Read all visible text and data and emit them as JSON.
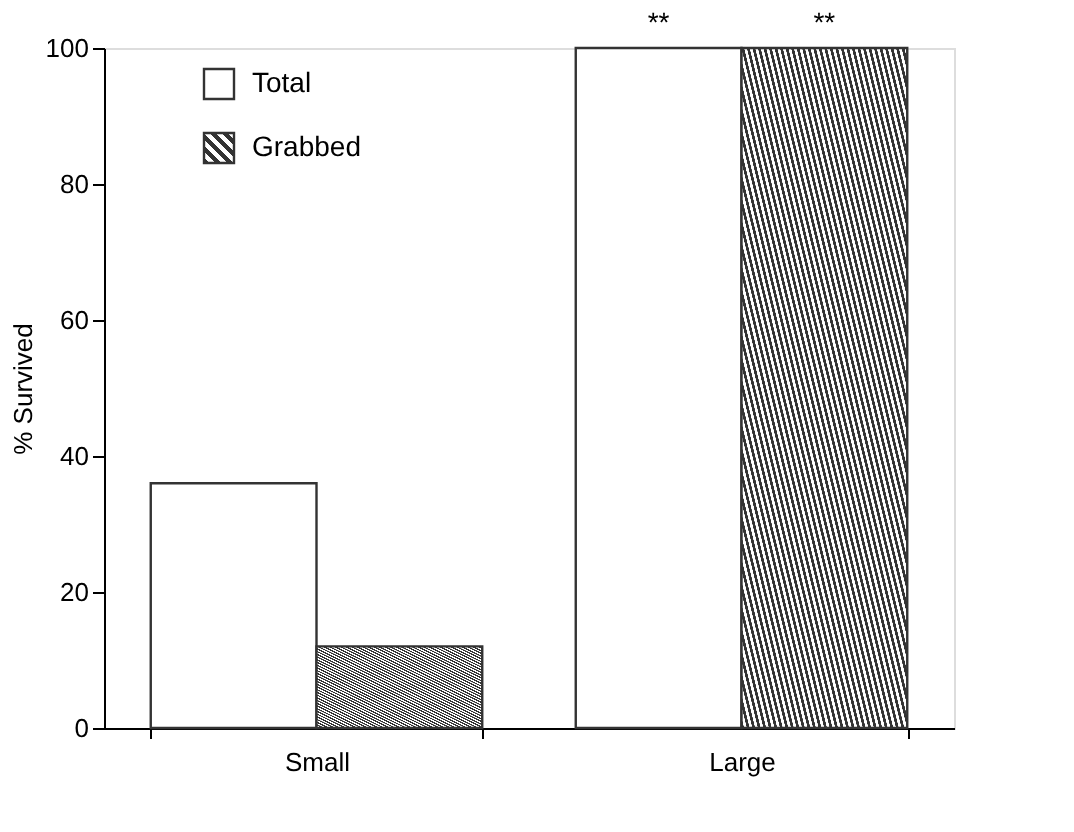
{
  "chart_data": {
    "type": "bar",
    "ylabel": "% Survived",
    "categories": [
      "Small",
      "Large"
    ],
    "series": [
      {
        "name": "Total",
        "color": "#ffffff",
        "values": [
          36,
          100
        ]
      },
      {
        "name": "Grabbed",
        "color": "#333333",
        "values": [
          12,
          100
        ]
      }
    ],
    "ylim": [
      0,
      100
    ],
    "yticks": [
      0,
      20,
      40,
      60,
      80,
      100
    ],
    "grid": false,
    "legend": "top left",
    "annotations": [
      {
        "text": "**",
        "x": "Large",
        "y": 100
      },
      {
        "text": "**",
        "x": "Large",
        "y": 100
      }
    ]
  }
}
